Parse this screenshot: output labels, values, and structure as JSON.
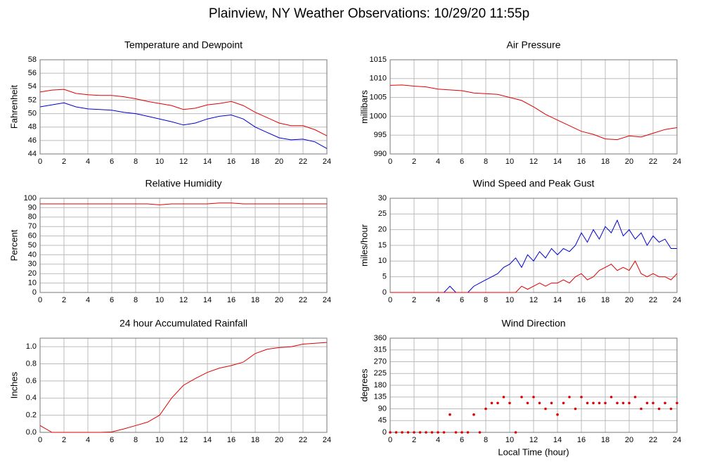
{
  "title": "Plainview, NY Weather Observations: 10/29/20 11:55p",
  "chart_data": [
    {
      "type": "line",
      "title": "Temperature and Dewpoint",
      "y_label": "Fahrenheit",
      "x": [
        0,
        1,
        2,
        3,
        4,
        5,
        6,
        7,
        8,
        9,
        10,
        11,
        12,
        13,
        14,
        15,
        16,
        17,
        18,
        19,
        20,
        21,
        22,
        23,
        24
      ],
      "series": [
        {
          "color": "#e00000",
          "values": [
            53.2,
            53.5,
            53.6,
            53.0,
            52.8,
            52.7,
            52.7,
            52.5,
            52.2,
            51.8,
            51.5,
            51.2,
            50.6,
            50.8,
            51.3,
            51.5,
            51.8,
            51.2,
            50.2,
            49.4,
            48.6,
            48.2,
            48.2,
            47.6,
            46.7
          ]
        },
        {
          "color": "#0000d0",
          "values": [
            51.0,
            51.3,
            51.6,
            51.0,
            50.7,
            50.6,
            50.5,
            50.2,
            50.0,
            49.6,
            49.2,
            48.8,
            48.3,
            48.6,
            49.2,
            49.6,
            49.8,
            49.2,
            48.0,
            47.2,
            46.4,
            46.1,
            46.2,
            45.8,
            44.8
          ]
        }
      ],
      "xlim": [
        0,
        24
      ],
      "xticks": [
        0,
        2,
        4,
        6,
        8,
        10,
        12,
        14,
        16,
        18,
        20,
        22,
        24
      ],
      "ylim": [
        44,
        58
      ],
      "yticks": [
        44,
        46,
        48,
        50,
        52,
        54,
        56,
        58
      ],
      "grid": true
    },
    {
      "type": "line",
      "title": "Air Pressure",
      "y_label": "millibars",
      "x": [
        0,
        1,
        2,
        3,
        4,
        5,
        6,
        7,
        8,
        9,
        10,
        11,
        12,
        13,
        14,
        15,
        16,
        17,
        18,
        19,
        20,
        21,
        22,
        23,
        24
      ],
      "series": [
        {
          "color": "#e00000",
          "values": [
            1008.2,
            1008.3,
            1008.0,
            1007.8,
            1007.2,
            1007.0,
            1006.8,
            1006.2,
            1006.0,
            1005.8,
            1005.0,
            1004.2,
            1002.5,
            1000.5,
            999.0,
            997.5,
            996.0,
            995.2,
            994.0,
            993.8,
            994.8,
            994.5,
            995.5,
            996.5,
            997.0
          ]
        }
      ],
      "xlim": [
        0,
        24
      ],
      "xticks": [
        0,
        2,
        4,
        6,
        8,
        10,
        12,
        14,
        16,
        18,
        20,
        22,
        24
      ],
      "ylim": [
        990,
        1015
      ],
      "yticks": [
        990,
        995,
        1000,
        1005,
        1010,
        1015
      ],
      "grid": true
    },
    {
      "type": "line",
      "title": "Relative Humidity",
      "y_label": "Percent",
      "x": [
        0,
        1,
        2,
        3,
        4,
        5,
        6,
        7,
        8,
        9,
        10,
        11,
        12,
        13,
        14,
        15,
        16,
        17,
        18,
        19,
        20,
        21,
        22,
        23,
        24
      ],
      "series": [
        {
          "color": "#e00000",
          "values": [
            94,
            94,
            94,
            94,
            94,
            94,
            94,
            94,
            94,
            94,
            93,
            94,
            94,
            94,
            94,
            95,
            95,
            94,
            94,
            94,
            94,
            94,
            94,
            94,
            94
          ]
        }
      ],
      "xlim": [
        0,
        24
      ],
      "xticks": [
        0,
        2,
        4,
        6,
        8,
        10,
        12,
        14,
        16,
        18,
        20,
        22,
        24
      ],
      "ylim": [
        0,
        100
      ],
      "yticks": [
        0,
        10,
        20,
        30,
        40,
        50,
        60,
        70,
        80,
        90,
        100
      ],
      "grid": true
    },
    {
      "type": "line",
      "title": "Wind Speed and Peak Gust",
      "y_label": "miles/hour",
      "x": [
        0,
        0.5,
        1,
        1.5,
        2,
        2.5,
        3,
        3.5,
        4,
        4.5,
        5,
        5.5,
        6,
        6.5,
        7,
        7.5,
        8,
        8.5,
        9,
        9.5,
        10,
        10.5,
        11,
        11.5,
        12,
        12.5,
        13,
        13.5,
        14,
        14.5,
        15,
        15.5,
        16,
        16.5,
        17,
        17.5,
        18,
        18.5,
        19,
        19.5,
        20,
        20.5,
        21,
        21.5,
        22,
        22.5,
        23,
        23.5,
        24
      ],
      "series": [
        {
          "color": "#0000d0",
          "values": [
            0,
            0,
            0,
            0,
            0,
            0,
            0,
            0,
            0,
            0,
            2,
            0,
            0,
            0,
            2,
            3,
            4,
            5,
            6,
            8,
            9,
            11,
            8,
            12,
            10,
            13,
            11,
            14,
            12,
            14,
            13,
            15,
            19,
            16,
            20,
            17,
            21,
            19,
            23,
            18,
            20,
            17,
            19,
            15,
            18,
            16,
            17,
            14,
            14
          ]
        },
        {
          "color": "#e00000",
          "values": [
            0,
            0,
            0,
            0,
            0,
            0,
            0,
            0,
            0,
            0,
            0,
            0,
            0,
            0,
            0,
            0,
            0,
            0,
            0,
            0,
            0,
            0,
            2,
            1,
            2,
            3,
            2,
            3,
            3,
            4,
            3,
            5,
            6,
            4,
            5,
            7,
            8,
            9,
            7,
            8,
            7,
            10,
            6,
            5,
            6,
            5,
            5,
            4,
            6
          ]
        }
      ],
      "xlim": [
        0,
        24
      ],
      "xticks": [
        0,
        2,
        4,
        6,
        8,
        10,
        12,
        14,
        16,
        18,
        20,
        22,
        24
      ],
      "ylim": [
        0,
        30
      ],
      "yticks": [
        0,
        5,
        10,
        15,
        20,
        25,
        30
      ],
      "grid": true
    },
    {
      "type": "line",
      "title": "24 hour Accumulated Rainfall",
      "y_label": "Inches",
      "x": [
        0,
        1,
        2,
        3,
        4,
        5,
        6,
        7,
        8,
        9,
        10,
        11,
        12,
        13,
        14,
        15,
        16,
        17,
        18,
        19,
        20,
        21,
        22,
        23,
        24
      ],
      "series": [
        {
          "color": "#e00000",
          "values": [
            0.08,
            0,
            0,
            0,
            0,
            0,
            0.005,
            0.04,
            0.08,
            0.12,
            0.2,
            0.4,
            0.55,
            0.63,
            0.7,
            0.75,
            0.78,
            0.82,
            0.92,
            0.97,
            0.99,
            1.0,
            1.03,
            1.04,
            1.05
          ]
        }
      ],
      "xlim": [
        0,
        24
      ],
      "xticks": [
        0,
        2,
        4,
        6,
        8,
        10,
        12,
        14,
        16,
        18,
        20,
        22,
        24
      ],
      "ylim": [
        0,
        1.1
      ],
      "yticks": [
        {
          "value": 0,
          "label": "0.0"
        },
        0.2,
        0.4,
        0.6,
        0.8,
        {
          "value": 1,
          "label": "1.0"
        }
      ],
      "grid": true
    },
    {
      "type": "scatter",
      "title": "Wind Direction",
      "y_label": "degrees",
      "x_label": "Local Time (hour)",
      "x": [
        0,
        0.5,
        1,
        1.5,
        2,
        2.5,
        3,
        3.5,
        4,
        4.5,
        5,
        5.5,
        6,
        6.5,
        7,
        7.5,
        8,
        8.5,
        9,
        9.5,
        10,
        10.5,
        11,
        11.5,
        12,
        12.5,
        13,
        13.5,
        14,
        14.5,
        15,
        15.5,
        16,
        16.5,
        17,
        17.5,
        18,
        18.5,
        19,
        19.5,
        20,
        20.5,
        21,
        21.5,
        22,
        22.5,
        23,
        23.5,
        24
      ],
      "series": [
        {
          "color": "#e00000",
          "values": [
            0,
            0,
            0,
            0,
            0,
            0,
            0,
            0,
            0,
            0,
            68,
            0,
            0,
            0,
            68,
            0,
            90,
            112,
            112,
            135,
            112,
            0,
            135,
            112,
            135,
            112,
            90,
            112,
            68,
            112,
            135,
            90,
            135,
            112,
            112,
            112,
            112,
            135,
            112,
            112,
            112,
            135,
            90,
            112,
            112,
            90,
            112,
            90,
            112
          ]
        }
      ],
      "xlim": [
        0,
        24
      ],
      "xticks": [
        0,
        2,
        4,
        6,
        8,
        10,
        12,
        14,
        16,
        18,
        20,
        22,
        24
      ],
      "ylim": [
        0,
        360
      ],
      "yticks": [
        0,
        45,
        90,
        135,
        180,
        225,
        270,
        315,
        360
      ],
      "grid": true
    }
  ]
}
